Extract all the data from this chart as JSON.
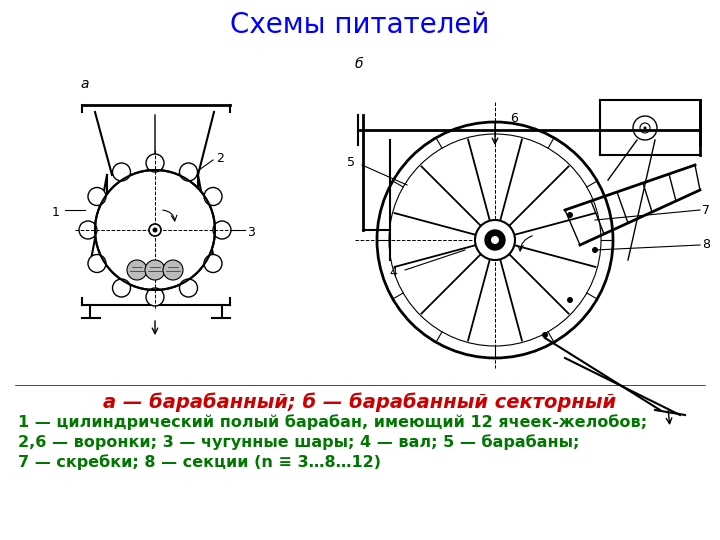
{
  "title": "Схемы питателей",
  "title_color": "#0000ff",
  "title_fontsize": 20,
  "title_bold": false,
  "label_a": "а",
  "label_b": "б",
  "subtitle_red": "а — барабанный; б — барабанный секторный",
  "subtitle_red_color": "#cc0000",
  "subtitle_red_fontsize": 14,
  "desc_line1": "1 — цилиндрический полый барабан, имеющий 12 ячеек-желобов;",
  "desc_line2": "2,6 — воронки; 3 — чугунные шары; 4 — вал; 5 — барабаны;",
  "desc_line3": "7 — скребки; 8 — секции (n ≡ 3…8…12)",
  "desc_color": "#007700",
  "desc_fontsize": 11.5,
  "bg_color": "#ffffff"
}
